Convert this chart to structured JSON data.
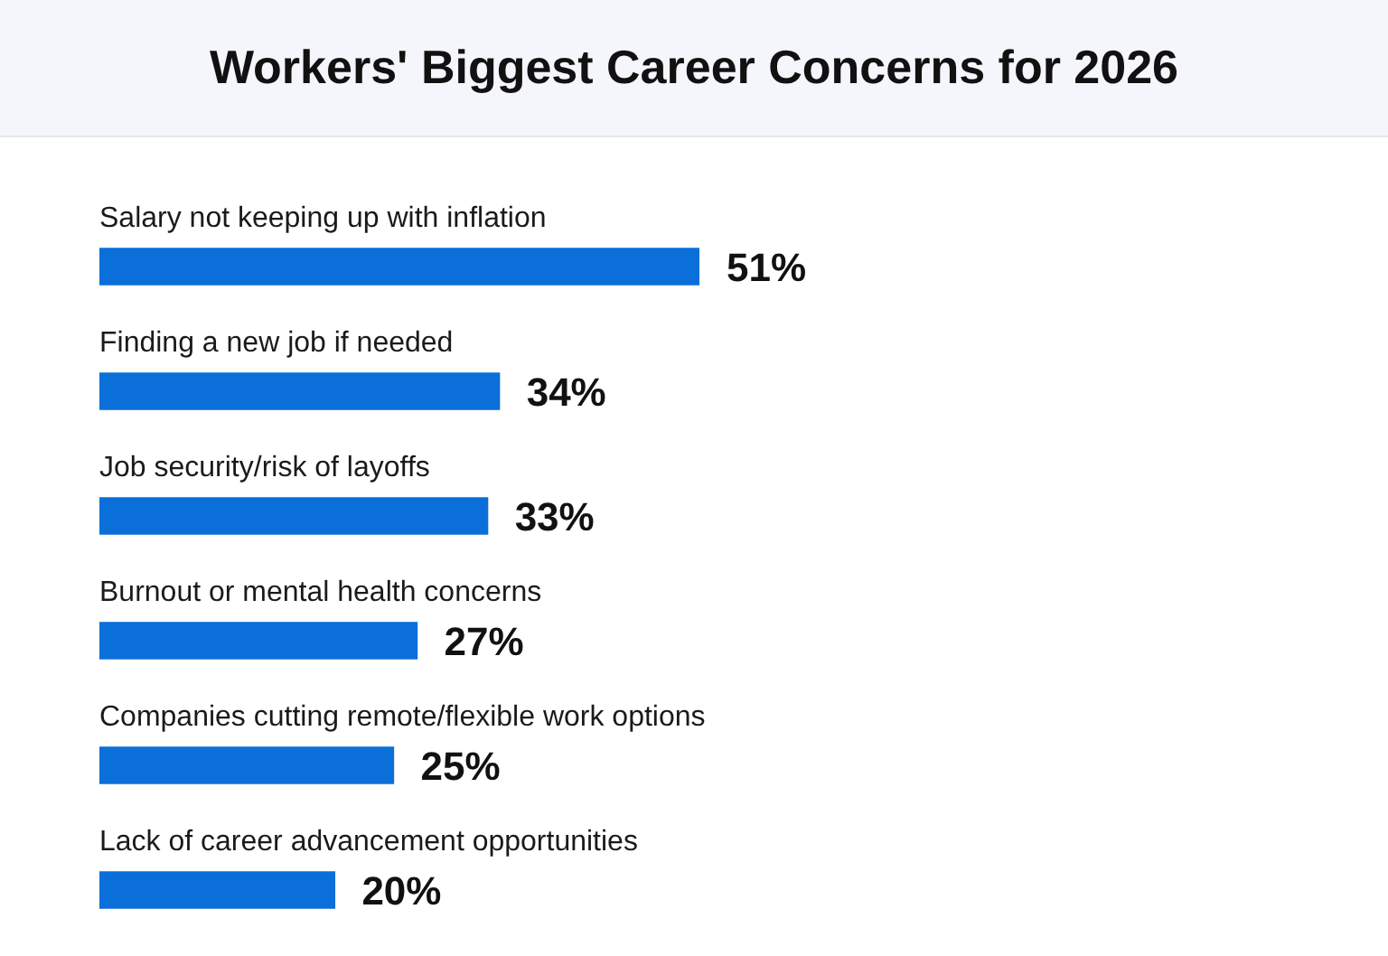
{
  "chart_data": {
    "type": "bar",
    "orientation": "horizontal",
    "title": "Workers' Biggest Career Concerns for 2026",
    "categories": [
      "Salary not keeping up with inflation",
      "Finding a new job if needed",
      "Job security/risk of layoffs",
      "Burnout or mental health concerns",
      "Companies cutting remote/flexible work options",
      "Lack of career advancement opportunities"
    ],
    "values": [
      51,
      34,
      33,
      27,
      25,
      20
    ],
    "value_labels": [
      "51%",
      "34%",
      "33%",
      "27%",
      "25%",
      "20%"
    ],
    "color": "#0a6fd8"
  }
}
